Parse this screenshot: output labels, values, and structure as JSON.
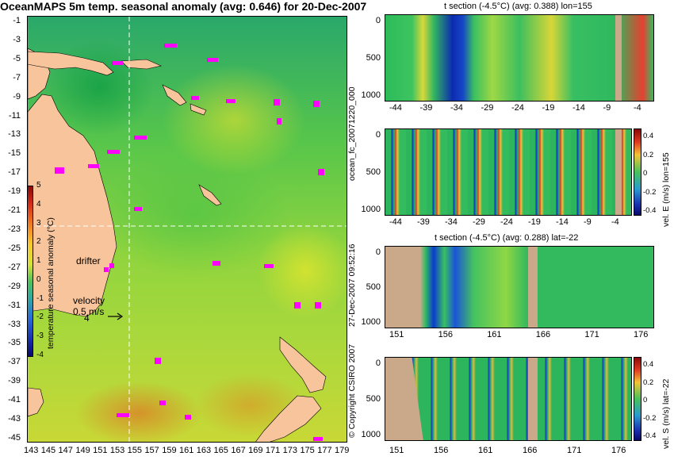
{
  "title": "OceanMAPS 5m temp. seasonal anomaly (avg: 0.646) for 20-Dec-2007",
  "map": {
    "lat_ticks": [
      "-1",
      "-3",
      "-5",
      "-7",
      "-9",
      "-11",
      "-13",
      "-15",
      "-17",
      "-19",
      "-21",
      "-23",
      "-25",
      "-27",
      "-29",
      "-31",
      "-33",
      "-35",
      "-37",
      "-39",
      "-41",
      "-43",
      "-45"
    ],
    "lon_ticks": [
      "143",
      "145",
      "147",
      "149",
      "151",
      "153",
      "155",
      "157",
      "159",
      "161",
      "163",
      "165",
      "167",
      "169",
      "171",
      "173",
      "175",
      "177",
      "179"
    ],
    "drifter_label": "drifter",
    "velocity_label": "velocity",
    "velocity_value": "0.5 m/s",
    "velocity_value2": "4",
    "colorbar_label": "temperature seasonal anomaly (°C)",
    "colorbar_ticks": [
      "5",
      "4",
      "3",
      "2",
      "1",
      "0",
      "-1",
      "-2",
      "-3",
      "-4"
    ],
    "colors": {
      "land": "#f7c49b",
      "drifter": "#ff00ff",
      "section_land": "#c9a98a"
    }
  },
  "sections": {
    "panel1": {
      "title": "t section (-4.5°C) (avg: 0.388) lon=155",
      "y_ticks": [
        "0",
        "500",
        "1000"
      ],
      "x_ticks": [
        "-44",
        "-39",
        "-34",
        "-29",
        "-24",
        "-19",
        "-14",
        "-9",
        "-4"
      ]
    },
    "panel2": {
      "y_ticks": [
        "0",
        "500",
        "1000"
      ],
      "x_ticks": [
        "-44",
        "-39",
        "-34",
        "-29",
        "-24",
        "-19",
        "-14",
        "-9",
        "-4"
      ],
      "colorbar_ticks": [
        "0.4",
        "0.2",
        "0",
        "-0.2",
        "-0.4"
      ],
      "colorbar_label": "vel. E (m/s) lon=155"
    },
    "panel3": {
      "title": "t section (-4.5°C) (avg: 0.288) lat=-22",
      "y_ticks": [
        "0",
        "500",
        "1000"
      ],
      "x_ticks": [
        "151",
        "156",
        "161",
        "166",
        "171",
        "176"
      ]
    },
    "panel4": {
      "y_ticks": [
        "0",
        "500",
        "1000"
      ],
      "x_ticks": [
        "151",
        "156",
        "161",
        "166",
        "171",
        "176"
      ],
      "colorbar_ticks": [
        "0.4",
        "0.2",
        "0",
        "-0.2",
        "-0.4"
      ],
      "colorbar_label": "vel. S (m/s) lat=-22"
    }
  },
  "side_text": {
    "file_name": "ocean_fc_20071220_000",
    "date_time": "27-Dec-2007 09:52:16",
    "copyright": "© Copyright CSIRO 2007"
  }
}
